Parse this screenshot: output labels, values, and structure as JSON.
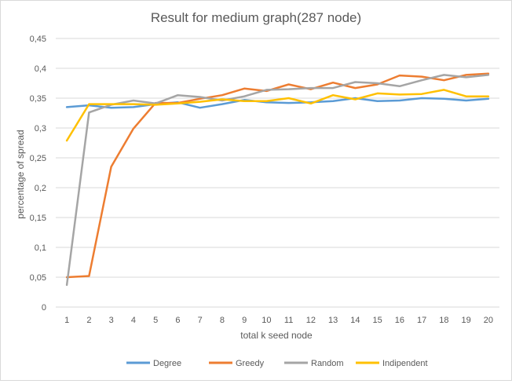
{
  "chart_data": {
    "type": "line",
    "title": "Result for medium graph(287 node)",
    "xlabel": "total k seed node",
    "ylabel": "percentage of spread",
    "categories": [
      "1",
      "2",
      "3",
      "4",
      "5",
      "6",
      "7",
      "8",
      "9",
      "10",
      "11",
      "12",
      "13",
      "14",
      "15",
      "16",
      "17",
      "18",
      "19",
      "20"
    ],
    "ylim": [
      0,
      0.45
    ],
    "yticks": [
      {
        "value": 0,
        "label": "0"
      },
      {
        "value": 0.05,
        "label": "0,05"
      },
      {
        "value": 0.1,
        "label": "0,1"
      },
      {
        "value": 0.15,
        "label": "0,15"
      },
      {
        "value": 0.2,
        "label": "0,2"
      },
      {
        "value": 0.25,
        "label": "0,25"
      },
      {
        "value": 0.3,
        "label": "0,3"
      },
      {
        "value": 0.35,
        "label": "0,35"
      },
      {
        "value": 0.4,
        "label": "0,4"
      },
      {
        "value": 0.45,
        "label": "0,45"
      }
    ],
    "grid": true,
    "legend_position": "bottom",
    "series": [
      {
        "name": "Degree",
        "color": "#5B9BD5",
        "values": [
          0.335,
          0.338,
          0.334,
          0.335,
          0.34,
          0.343,
          0.334,
          0.34,
          0.347,
          0.343,
          0.342,
          0.343,
          0.345,
          0.35,
          0.345,
          0.346,
          0.35,
          0.349,
          0.346,
          0.349
        ]
      },
      {
        "name": "Greedy",
        "color": "#ED7D31",
        "values": [
          0.05,
          0.052,
          0.235,
          0.299,
          0.342,
          0.342,
          0.349,
          0.355,
          0.366,
          0.362,
          0.373,
          0.365,
          0.376,
          0.367,
          0.373,
          0.388,
          0.386,
          0.38,
          0.389,
          0.391
        ]
      },
      {
        "name": "Random",
        "color": "#A5A5A5",
        "values": [
          0.037,
          0.326,
          0.339,
          0.346,
          0.341,
          0.355,
          0.352,
          0.346,
          0.353,
          0.364,
          0.365,
          0.367,
          0.367,
          0.377,
          0.375,
          0.37,
          0.38,
          0.389,
          0.385,
          0.389
        ]
      },
      {
        "name": "Indipendent",
        "color": "#FFC000",
        "values": [
          0.279,
          0.34,
          0.34,
          0.34,
          0.339,
          0.341,
          0.344,
          0.348,
          0.345,
          0.345,
          0.35,
          0.341,
          0.355,
          0.348,
          0.358,
          0.356,
          0.357,
          0.364,
          0.353,
          0.353
        ]
      }
    ]
  }
}
